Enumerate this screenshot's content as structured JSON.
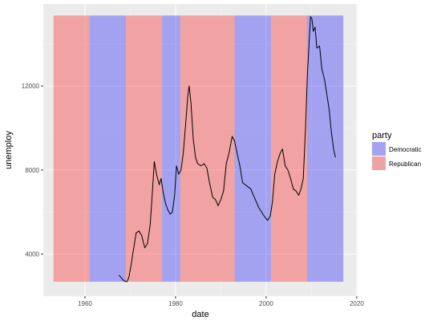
{
  "chart_data": {
    "type": "line",
    "xlabel": "date",
    "ylabel": "unemploy",
    "x_ticks": [
      "1960",
      "1980",
      "2000",
      "2020"
    ],
    "y_ticks": [
      "4000",
      "8000",
      "12000"
    ],
    "xlim": [
      1950.8,
      2020.2
    ],
    "ylim": [
      2000,
      15900
    ],
    "legend": {
      "title": "party",
      "position": "right",
      "entries": [
        {
          "label": "Democratic",
          "color": "#a3a3f0"
        },
        {
          "label": "Republican",
          "color": "#eea3a3"
        }
      ]
    },
    "background": {
      "type": "rect",
      "y_range": [
        2685,
        15352
      ],
      "periods": [
        {
          "start": 1953.06,
          "end": 1961.05,
          "party": "Republican"
        },
        {
          "start": 1961.05,
          "end": 1969.05,
          "party": "Democratic"
        },
        {
          "start": 1969.05,
          "end": 1977.05,
          "party": "Republican"
        },
        {
          "start": 1977.05,
          "end": 1981.05,
          "party": "Democratic"
        },
        {
          "start": 1981.05,
          "end": 1993.05,
          "party": "Republican"
        },
        {
          "start": 1993.05,
          "end": 2001.05,
          "party": "Democratic"
        },
        {
          "start": 2001.05,
          "end": 2009.05,
          "party": "Republican"
        },
        {
          "start": 2009.05,
          "end": 2017.05,
          "party": "Democratic"
        }
      ]
    },
    "series": [
      {
        "color": "#000000",
        "points": [
          [
            1967.5,
            3000
          ],
          [
            1967.9,
            2900
          ],
          [
            1968.3,
            2800
          ],
          [
            1968.8,
            2700
          ],
          [
            1969.3,
            2690
          ],
          [
            1969.7,
            2900
          ],
          [
            1970.2,
            3500
          ],
          [
            1970.7,
            4200
          ],
          [
            1971.3,
            5000
          ],
          [
            1971.9,
            5100
          ],
          [
            1972.5,
            4900
          ],
          [
            1973.2,
            4300
          ],
          [
            1973.8,
            4500
          ],
          [
            1974.4,
            5400
          ],
          [
            1974.9,
            7000
          ],
          [
            1975.3,
            8400
          ],
          [
            1975.8,
            7800
          ],
          [
            1976.4,
            7300
          ],
          [
            1976.8,
            7600
          ],
          [
            1977.3,
            6900
          ],
          [
            1977.8,
            6400
          ],
          [
            1978.3,
            6100
          ],
          [
            1978.8,
            5900
          ],
          [
            1979.3,
            6000
          ],
          [
            1979.8,
            6800
          ],
          [
            1980.2,
            8200
          ],
          [
            1980.7,
            7800
          ],
          [
            1981.2,
            8000
          ],
          [
            1981.7,
            8800
          ],
          [
            1982.2,
            10100
          ],
          [
            1982.7,
            11500
          ],
          [
            1983.0,
            12000
          ],
          [
            1983.4,
            11200
          ],
          [
            1983.9,
            9500
          ],
          [
            1984.4,
            8600
          ],
          [
            1984.9,
            8300
          ],
          [
            1985.6,
            8200
          ],
          [
            1986.3,
            8300
          ],
          [
            1986.9,
            8100
          ],
          [
            1987.5,
            7400
          ],
          [
            1988.2,
            6700
          ],
          [
            1988.8,
            6600
          ],
          [
            1989.4,
            6300
          ],
          [
            1990.0,
            6600
          ],
          [
            1990.6,
            7000
          ],
          [
            1991.2,
            8300
          ],
          [
            1991.8,
            8800
          ],
          [
            1992.5,
            9600
          ],
          [
            1993.0,
            9400
          ],
          [
            1993.6,
            8800
          ],
          [
            1994.2,
            8200
          ],
          [
            1994.8,
            7400
          ],
          [
            1995.4,
            7300
          ],
          [
            1996.0,
            7200
          ],
          [
            1996.6,
            7100
          ],
          [
            1997.2,
            6800
          ],
          [
            1997.8,
            6500
          ],
          [
            1998.4,
            6200
          ],
          [
            1999.0,
            6000
          ],
          [
            1999.6,
            5800
          ],
          [
            2000.3,
            5600
          ],
          [
            2000.9,
            5800
          ],
          [
            2001.4,
            6500
          ],
          [
            2001.9,
            7800
          ],
          [
            2002.5,
            8400
          ],
          [
            2003.1,
            8800
          ],
          [
            2003.6,
            9000
          ],
          [
            2004.2,
            8200
          ],
          [
            2004.8,
            8000
          ],
          [
            2005.4,
            7600
          ],
          [
            2006.0,
            7100
          ],
          [
            2006.6,
            7000
          ],
          [
            2007.2,
            6800
          ],
          [
            2007.7,
            7100
          ],
          [
            2008.2,
            7600
          ],
          [
            2008.7,
            10000
          ],
          [
            2009.1,
            12500
          ],
          [
            2009.6,
            14500
          ],
          [
            2009.8,
            15300
          ],
          [
            2010.1,
            15200
          ],
          [
            2010.4,
            14600
          ],
          [
            2010.8,
            14800
          ],
          [
            2011.2,
            13800
          ],
          [
            2011.8,
            13900
          ],
          [
            2012.3,
            12800
          ],
          [
            2012.9,
            12300
          ],
          [
            2013.4,
            11600
          ],
          [
            2013.9,
            10900
          ],
          [
            2014.4,
            9800
          ],
          [
            2014.9,
            9000
          ],
          [
            2015.3,
            8600
          ]
        ]
      }
    ]
  }
}
